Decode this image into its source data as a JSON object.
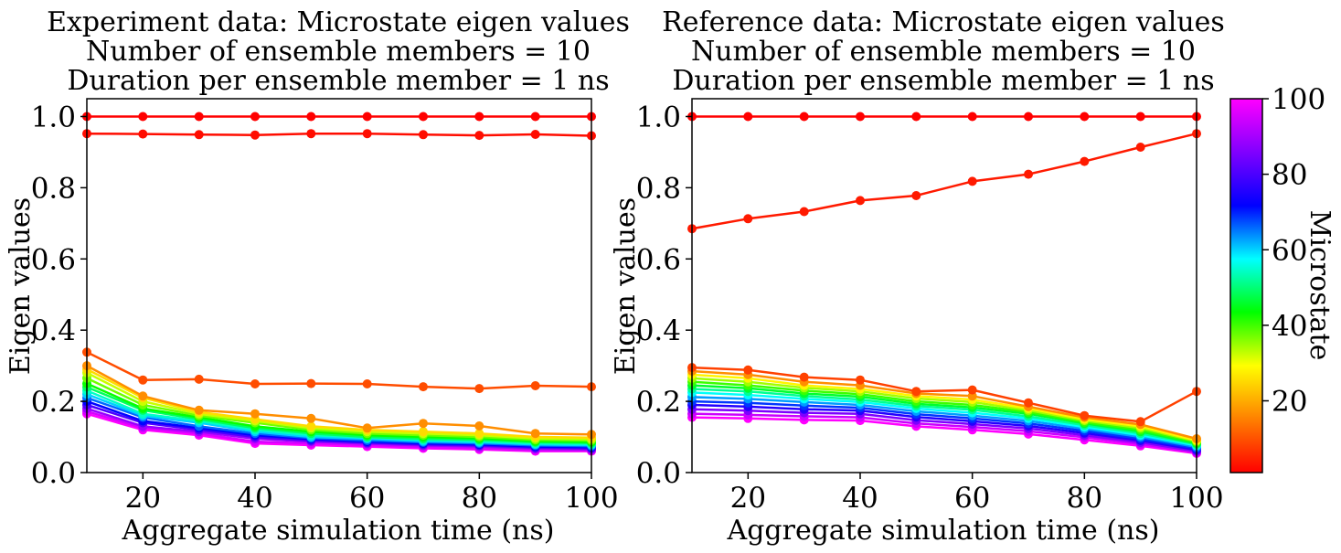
{
  "chart_data": [
    {
      "type": "line",
      "title": [
        "Experiment data: Microstate eigen values",
        "Number of ensemble members = 10",
        "Duration per ensemble member = 1 ns"
      ],
      "xlabel": "Aggregate simulation time (ns)",
      "ylabel": "Eigen values",
      "xlim": [
        10,
        100
      ],
      "ylim": [
        0,
        1.05
      ],
      "xticks": [
        20,
        40,
        60,
        80,
        100
      ],
      "yticks": [
        0.0,
        0.2,
        0.4,
        0.6,
        0.8,
        1.0
      ],
      "xtick_labels": [
        "20",
        "40",
        "60",
        "80",
        "100"
      ],
      "ytick_labels": [
        "0.0",
        "0.2",
        "0.4",
        "0.6",
        "0.8",
        "1.0"
      ],
      "grid": false,
      "x": [
        10,
        20,
        30,
        40,
        50,
        60,
        70,
        80,
        90,
        100
      ],
      "series": [
        {
          "microstate": 1,
          "values": [
            1.0,
            1.0,
            1.0,
            1.0,
            1.0,
            1.0,
            1.0,
            1.0,
            1.0,
            1.0
          ]
        },
        {
          "microstate": 2,
          "values": [
            0.952,
            0.951,
            0.949,
            0.948,
            0.952,
            0.952,
            0.949,
            0.947,
            0.95,
            0.946
          ]
        },
        {
          "microstate": 7,
          "values": [
            0.338,
            0.26,
            0.262,
            0.249,
            0.25,
            0.249,
            0.241,
            0.236,
            0.244,
            0.241
          ]
        },
        {
          "microstate": 12,
          "values": [
            0.3,
            0.215,
            0.175,
            0.165,
            0.152,
            0.125,
            0.138,
            0.131,
            0.11,
            0.107
          ]
        },
        {
          "microstate": 18,
          "values": [
            0.29,
            0.21,
            0.17,
            0.15,
            0.13,
            0.12,
            0.115,
            0.11,
            0.1,
            0.098
          ]
        },
        {
          "microstate": 25,
          "values": [
            0.28,
            0.2,
            0.165,
            0.145,
            0.125,
            0.115,
            0.11,
            0.105,
            0.096,
            0.094
          ]
        },
        {
          "microstate": 32,
          "values": [
            0.265,
            0.19,
            0.16,
            0.14,
            0.12,
            0.11,
            0.105,
            0.1,
            0.092,
            0.09
          ]
        },
        {
          "microstate": 40,
          "values": [
            0.25,
            0.18,
            0.155,
            0.13,
            0.115,
            0.105,
            0.1,
            0.096,
            0.088,
            0.086
          ]
        },
        {
          "microstate": 48,
          "values": [
            0.24,
            0.175,
            0.15,
            0.125,
            0.11,
            0.1,
            0.095,
            0.092,
            0.085,
            0.083
          ]
        },
        {
          "microstate": 56,
          "values": [
            0.23,
            0.165,
            0.145,
            0.12,
            0.105,
            0.098,
            0.092,
            0.088,
            0.082,
            0.08
          ]
        },
        {
          "microstate": 64,
          "values": [
            0.22,
            0.16,
            0.14,
            0.115,
            0.1,
            0.095,
            0.088,
            0.085,
            0.079,
            0.077
          ]
        },
        {
          "microstate": 72,
          "values": [
            0.21,
            0.155,
            0.13,
            0.11,
            0.097,
            0.09,
            0.085,
            0.082,
            0.076,
            0.074
          ]
        },
        {
          "microstate": 80,
          "values": [
            0.2,
            0.145,
            0.125,
            0.105,
            0.094,
            0.087,
            0.082,
            0.079,
            0.073,
            0.071
          ]
        },
        {
          "microstate": 86,
          "values": [
            0.19,
            0.14,
            0.12,
            0.1,
            0.09,
            0.084,
            0.079,
            0.076,
            0.07,
            0.068
          ]
        },
        {
          "microstate": 92,
          "values": [
            0.18,
            0.13,
            0.115,
            0.095,
            0.087,
            0.081,
            0.076,
            0.073,
            0.067,
            0.065
          ]
        },
        {
          "microstate": 97,
          "values": [
            0.172,
            0.125,
            0.11,
            0.087,
            0.082,
            0.077,
            0.072,
            0.068,
            0.063,
            0.062
          ]
        },
        {
          "microstate": 100,
          "values": [
            0.165,
            0.12,
            0.105,
            0.082,
            0.077,
            0.073,
            0.068,
            0.065,
            0.06,
            0.06
          ]
        }
      ]
    },
    {
      "type": "line",
      "title": [
        "Reference data: Microstate eigen values",
        "Number of ensemble members = 10",
        "Duration per ensemble member = 1 ns"
      ],
      "xlabel": "Aggregate simulation time (ns)",
      "ylabel": "Eigen values",
      "xlim": [
        10,
        100
      ],
      "ylim": [
        0,
        1.05
      ],
      "xticks": [
        20,
        40,
        60,
        80,
        100
      ],
      "yticks": [
        0.0,
        0.2,
        0.4,
        0.6,
        0.8,
        1.0
      ],
      "xtick_labels": [
        "20",
        "40",
        "60",
        "80",
        "100"
      ],
      "ytick_labels": [
        "0.0",
        "0.2",
        "0.4",
        "0.6",
        "0.8",
        "1.0"
      ],
      "grid": false,
      "x": [
        10,
        20,
        30,
        40,
        50,
        60,
        70,
        80,
        90,
        100
      ],
      "series": [
        {
          "microstate": 1,
          "values": [
            1.0,
            1.0,
            1.0,
            1.0,
            1.0,
            1.0,
            1.0,
            1.0,
            1.0,
            1.0
          ]
        },
        {
          "microstate": 3,
          "values": [
            0.685,
            0.713,
            0.733,
            0.764,
            0.778,
            0.818,
            0.838,
            0.874,
            0.914,
            0.952
          ]
        },
        {
          "microstate": 6,
          "values": [
            0.295,
            0.288,
            0.268,
            0.26,
            0.228,
            0.232,
            0.196,
            0.16,
            0.143,
            0.228
          ]
        },
        {
          "microstate": 12,
          "values": [
            0.285,
            0.275,
            0.255,
            0.245,
            0.222,
            0.215,
            0.185,
            0.155,
            0.135,
            0.095
          ]
        },
        {
          "microstate": 20,
          "values": [
            0.275,
            0.265,
            0.245,
            0.235,
            0.215,
            0.205,
            0.18,
            0.15,
            0.13,
            0.09
          ]
        },
        {
          "microstate": 28,
          "values": [
            0.265,
            0.255,
            0.238,
            0.228,
            0.208,
            0.198,
            0.175,
            0.146,
            0.125,
            0.088
          ]
        },
        {
          "microstate": 36,
          "values": [
            0.255,
            0.245,
            0.23,
            0.22,
            0.2,
            0.19,
            0.17,
            0.142,
            0.12,
            0.085
          ]
        },
        {
          "microstate": 44,
          "values": [
            0.245,
            0.237,
            0.222,
            0.213,
            0.193,
            0.183,
            0.165,
            0.138,
            0.115,
            0.082
          ]
        },
        {
          "microstate": 52,
          "values": [
            0.235,
            0.228,
            0.215,
            0.205,
            0.187,
            0.176,
            0.158,
            0.133,
            0.11,
            0.079
          ]
        },
        {
          "microstate": 60,
          "values": [
            0.225,
            0.218,
            0.207,
            0.198,
            0.18,
            0.168,
            0.152,
            0.128,
            0.105,
            0.076
          ]
        },
        {
          "microstate": 68,
          "values": [
            0.212,
            0.207,
            0.198,
            0.19,
            0.172,
            0.16,
            0.145,
            0.123,
            0.1,
            0.072
          ]
        },
        {
          "microstate": 76,
          "values": [
            0.2,
            0.196,
            0.188,
            0.182,
            0.164,
            0.152,
            0.138,
            0.117,
            0.095,
            0.068
          ]
        },
        {
          "microstate": 83,
          "values": [
            0.19,
            0.185,
            0.178,
            0.174,
            0.156,
            0.144,
            0.131,
            0.111,
            0.09,
            0.064
          ]
        },
        {
          "microstate": 90,
          "values": [
            0.178,
            0.174,
            0.168,
            0.165,
            0.147,
            0.136,
            0.124,
            0.105,
            0.085,
            0.06
          ]
        },
        {
          "microstate": 96,
          "values": [
            0.165,
            0.162,
            0.158,
            0.155,
            0.138,
            0.128,
            0.116,
            0.099,
            0.08,
            0.057
          ]
        },
        {
          "microstate": 100,
          "values": [
            0.155,
            0.152,
            0.148,
            0.146,
            0.13,
            0.12,
            0.108,
            0.092,
            0.075,
            0.054
          ]
        }
      ]
    }
  ],
  "colorbar": {
    "label": "Microstate",
    "range": [
      1,
      100
    ],
    "ticks": [
      20,
      40,
      60,
      80,
      100
    ],
    "tick_labels": [
      "20",
      "40",
      "60",
      "80",
      "100"
    ],
    "colormap": "gist_rainbow_r",
    "colors": [
      "#ff0000",
      "#ff8000",
      "#ffff00",
      "#00ff00",
      "#00ffff",
      "#0000ff",
      "#8000ff",
      "#ff00ff"
    ]
  }
}
